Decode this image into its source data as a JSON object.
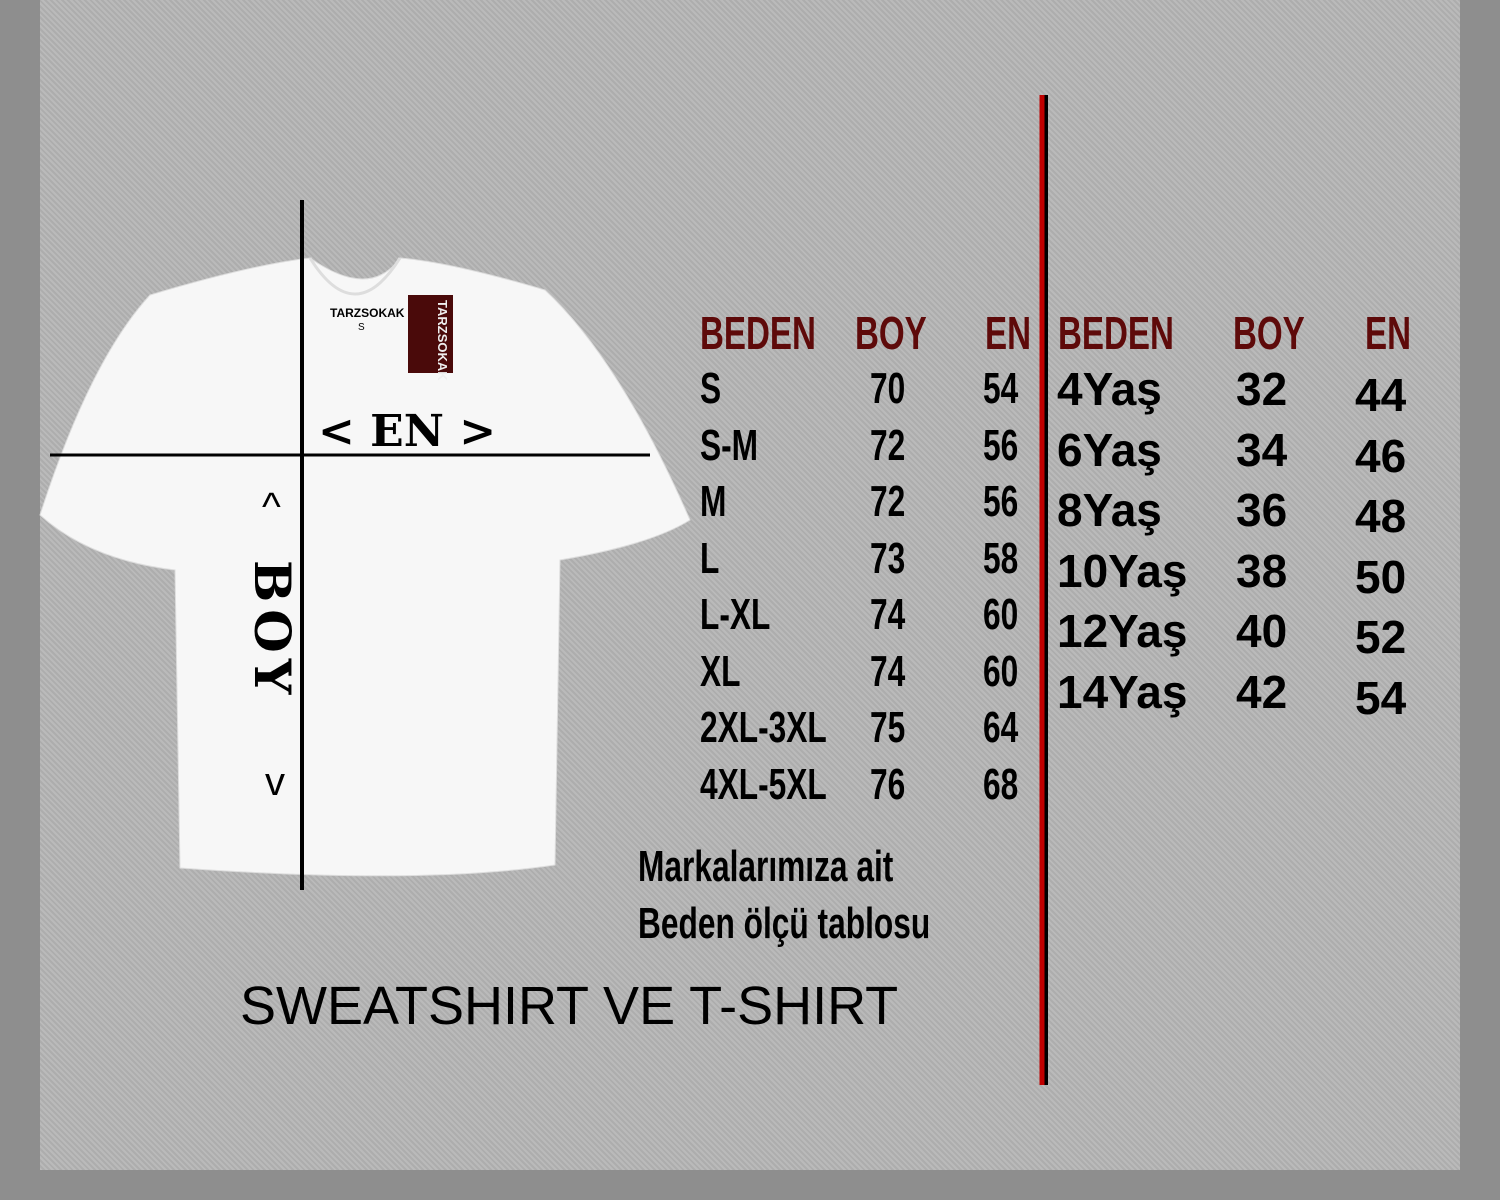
{
  "shirt": {
    "neck_label": "TARZSOKAK",
    "neck_size": "S",
    "tag_text": "TARZSOKAK",
    "width_label": "< EN >",
    "length_label": "BOY",
    "arrow_up": "^",
    "arrow_down": "v"
  },
  "adult_table": {
    "headers": [
      "BEDEN",
      "BOY",
      "EN"
    ],
    "rows": [
      [
        "S",
        "70",
        "54"
      ],
      [
        "S-M",
        "72",
        "56"
      ],
      [
        "M",
        "72",
        "56"
      ],
      [
        "L",
        "73",
        "58"
      ],
      [
        "L-XL",
        "74",
        "60"
      ],
      [
        "XL",
        "74",
        "60"
      ],
      [
        "2XL-3XL",
        "75",
        "64"
      ],
      [
        "4XL-5XL",
        "76",
        "68"
      ]
    ]
  },
  "kids_table": {
    "headers": [
      "BEDEN",
      "BOY",
      "EN"
    ],
    "rows": [
      [
        "4Yaş",
        "32",
        "44"
      ],
      [
        "6Yaş",
        "34",
        "46"
      ],
      [
        "8Yaş",
        "36",
        "48"
      ],
      [
        "10Yaş",
        "38",
        "50"
      ],
      [
        "12Yaş",
        "40",
        "52"
      ],
      [
        "14Yaş",
        "42",
        "54"
      ]
    ]
  },
  "caption": {
    "line1": "Markalarımıza ait",
    "line2": "Beden ölçü tablosu",
    "title": "SWEATSHIRT VE T-SHIRT"
  },
  "colors": {
    "header": "#5e0a0a",
    "divider": "#c00000",
    "tag": "#4a0a0a"
  }
}
